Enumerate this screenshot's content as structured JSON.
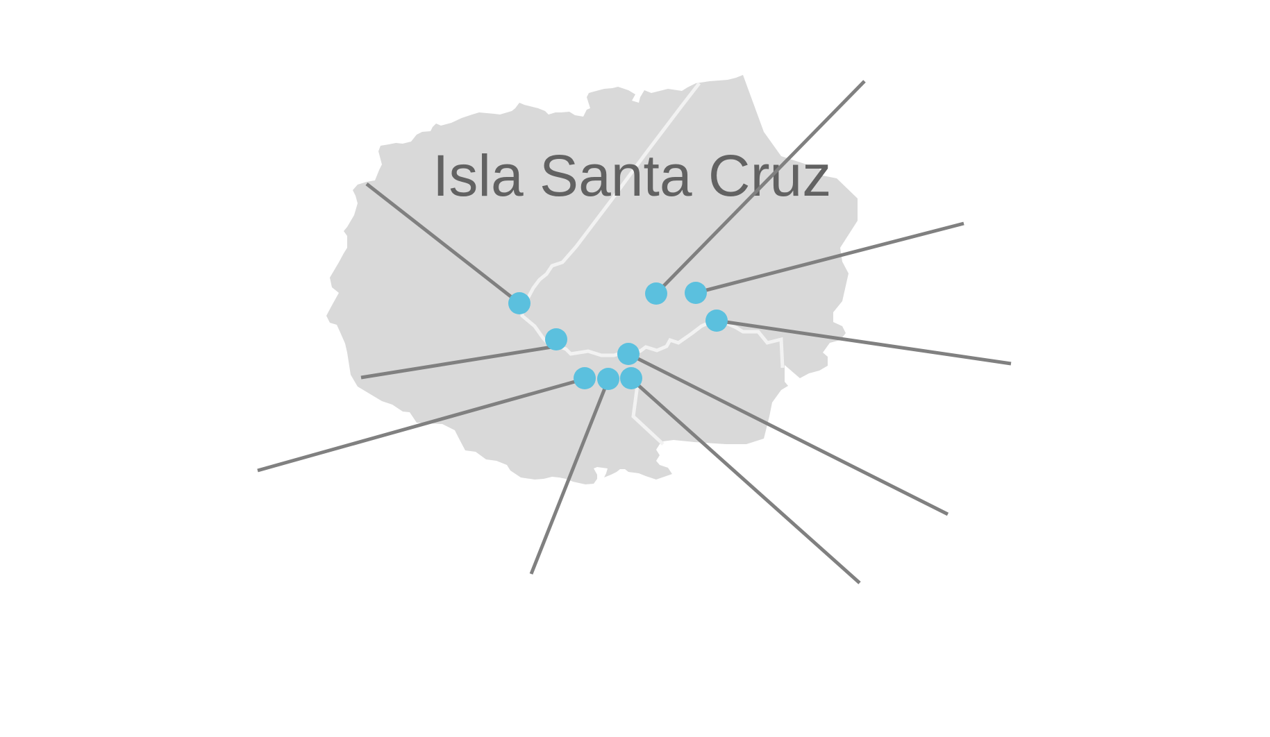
{
  "map": {
    "island_name": "Isla Santa Cruz",
    "colors": {
      "island_fill": "#d9d9d9",
      "road": "#f2f2f2",
      "leader_line": "#808080",
      "marker": "#5bc0de",
      "title_text": "#626262"
    },
    "markers": [
      {
        "id": "marker-1",
        "icon": "location-dot"
      },
      {
        "id": "marker-2",
        "icon": "location-dot"
      },
      {
        "id": "marker-3",
        "icon": "location-dot"
      },
      {
        "id": "marker-4",
        "icon": "location-dot"
      },
      {
        "id": "marker-5",
        "icon": "location-dot"
      },
      {
        "id": "marker-6",
        "icon": "location-dot"
      },
      {
        "id": "marker-7",
        "icon": "location-dot"
      },
      {
        "id": "marker-8",
        "icon": "location-dot"
      },
      {
        "id": "marker-9",
        "icon": "location-dot"
      },
      {
        "id": "marker-10",
        "icon": "location-dot"
      }
    ]
  }
}
